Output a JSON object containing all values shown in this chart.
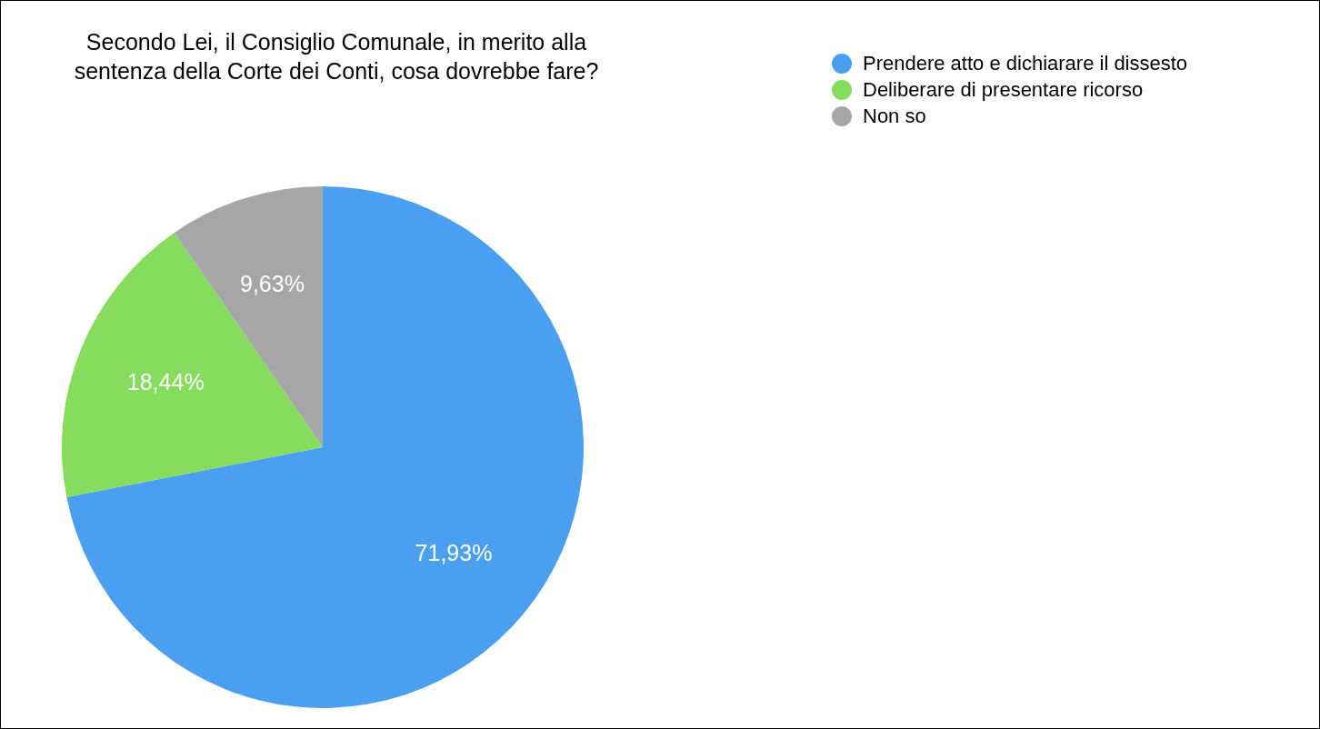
{
  "chart_data": {
    "type": "pie",
    "title": "Secondo Lei, il Consiglio Comunale, in merito alla sentenza della Corte dei Conti, cosa dovrebbe fare?",
    "categories": [
      "Prendere atto e dichiarare il dissesto",
      "Deliberare di presentare ricorso",
      "Non so"
    ],
    "values": [
      71.93,
      18.44,
      9.63
    ],
    "colors": [
      "#4a9ff0",
      "#86dc5c",
      "#a6a6a6"
    ],
    "value_labels": [
      "71,93%",
      "18,44%",
      "9,63%"
    ],
    "legend": "top right"
  }
}
